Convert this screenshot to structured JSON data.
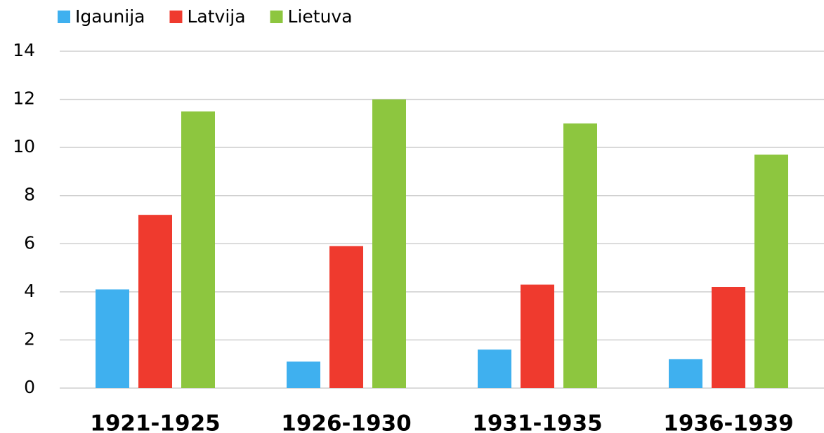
{
  "chart_data": {
    "type": "bar",
    "categories": [
      "1921-1925",
      "1926-1930",
      "1931-1935",
      "1936-1939"
    ],
    "series": [
      {
        "name": "Igaunija",
        "color": "#3fb0ef",
        "values": [
          4.1,
          1.1,
          1.6,
          1.2
        ]
      },
      {
        "name": "Latvija",
        "color": "#ef3a2e",
        "values": [
          7.2,
          5.9,
          4.3,
          4.2
        ]
      },
      {
        "name": "Lietuva",
        "color": "#8dc63f",
        "values": [
          11.5,
          12,
          11,
          9.7
        ]
      }
    ],
    "ylim": [
      0,
      14
    ],
    "yticks": [
      0,
      2,
      4,
      6,
      8,
      10,
      12,
      14
    ],
    "grid": true,
    "legend": "top-left"
  }
}
